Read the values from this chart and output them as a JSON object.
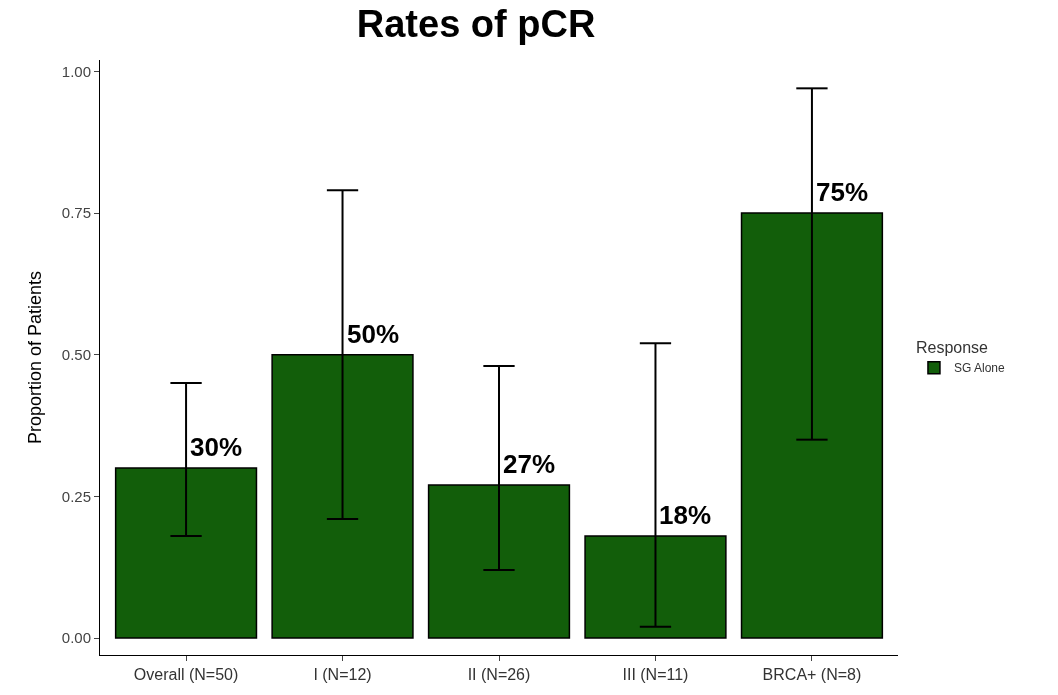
{
  "chart_data": {
    "type": "bar",
    "title": "Rates of pCR",
    "ylabel": "Proportion of Patients",
    "legend_title": "Response",
    "categories": [
      "Overall (N=50)",
      "I (N=12)",
      "II (N=26)",
      "III (N=11)",
      "BRCA+ (N=8)"
    ],
    "series": [
      {
        "name": "SG Alone",
        "color": "#125e0a",
        "values": [
          0.3,
          0.5,
          0.27,
          0.18,
          0.75
        ],
        "errors": [
          [
            0.18,
            0.45
          ],
          [
            0.21,
            0.79
          ],
          [
            0.12,
            0.48
          ],
          [
            0.02,
            0.52
          ],
          [
            0.35,
            0.97
          ]
        ],
        "value_labels": [
          "30%",
          "50%",
          "27%",
          "18%",
          "75%"
        ]
      }
    ],
    "ylim": [
      -0.03,
      1.02
    ],
    "yticks": [
      {
        "value": 0,
        "label": "0.00"
      },
      {
        "value": 0.25,
        "label": "0.25"
      },
      {
        "value": 0.5,
        "label": "0.50"
      },
      {
        "value": 0.75,
        "label": "0.75"
      },
      {
        "value": 1,
        "label": "1.00"
      }
    ],
    "legend": "right"
  }
}
